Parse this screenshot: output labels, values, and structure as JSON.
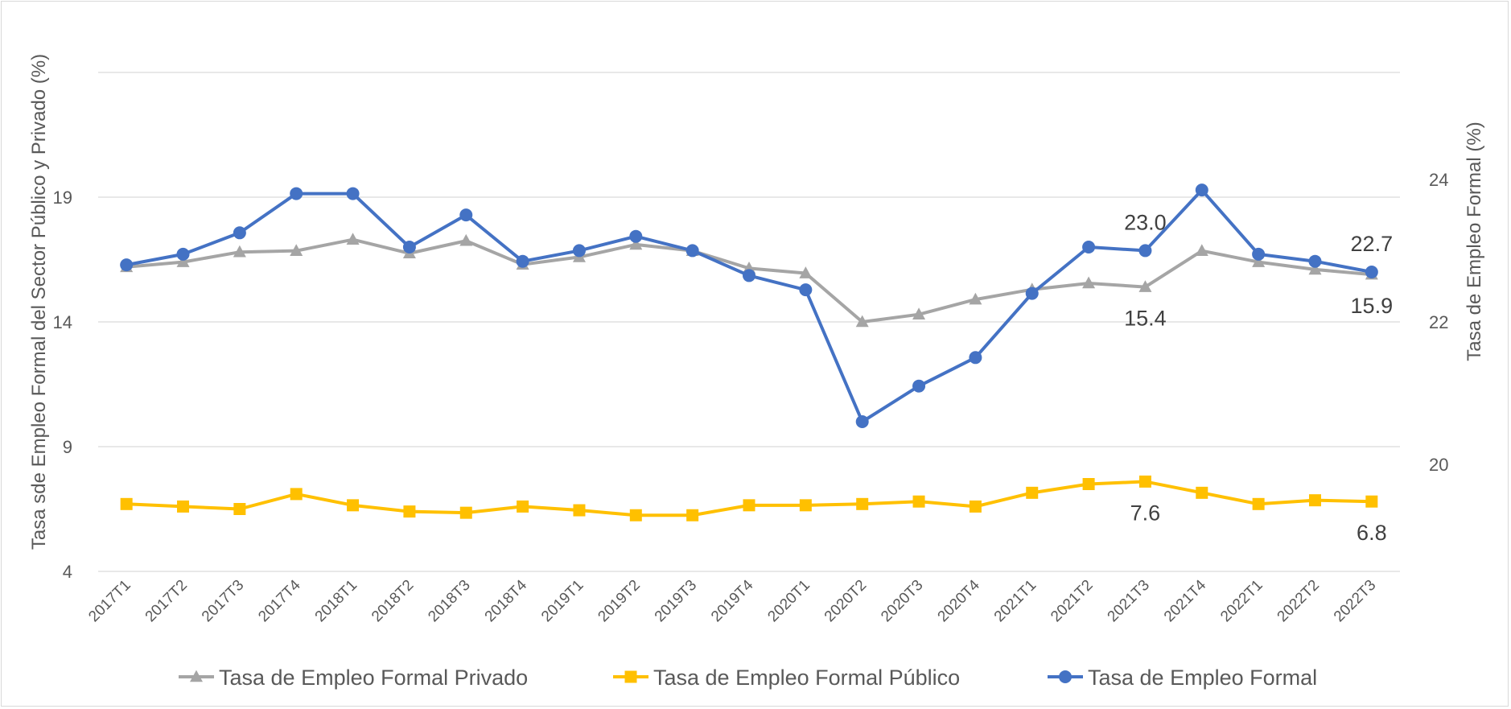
{
  "chart_data": {
    "type": "line",
    "title": "",
    "xlabel": "",
    "ylabel": "Tasa sde Empleo Formal del Sector Público y Privado (%)",
    "ylabel_right": "Tasa de Empleo Formal (%)",
    "ylim": [
      4,
      24
    ],
    "y_ticks": [
      4,
      9,
      14,
      19
    ],
    "ylim_right": [
      18.5,
      25.5
    ],
    "y_ticks_right": [
      20,
      22,
      24
    ],
    "grid": true,
    "legend_position": "bottom",
    "categories": [
      "2017T1",
      "2017T2",
      "2017T3",
      "2017T4",
      "2018T1",
      "2018T2",
      "2018T3",
      "2018T4",
      "2019T1",
      "2019T2",
      "2019T3",
      "2019T4",
      "2020T1",
      "2020T2",
      "2020T3",
      "2020T4",
      "2021T1",
      "2021T2",
      "2021T3",
      "2021T4",
      "2022T1",
      "2022T2",
      "2022T3"
    ],
    "series": [
      {
        "name": "Tasa de Empleo Formal Privado",
        "axis": "left",
        "color": "#a5a5a5",
        "marker": "triangle",
        "values": [
          16.2,
          16.4,
          16.8,
          16.85,
          17.3,
          16.75,
          17.25,
          16.3,
          16.6,
          17.1,
          16.85,
          16.15,
          15.95,
          14.0,
          14.3,
          14.9,
          15.3,
          15.55,
          15.4,
          16.85,
          16.4,
          16.1,
          15.9
        ],
        "labels": [
          {
            "index": 18,
            "text": "15.4"
          },
          {
            "index": 22,
            "text": "15.9"
          }
        ]
      },
      {
        "name": "Tasa de Empleo Formal Público",
        "axis": "left",
        "color": "#ffc000",
        "marker": "square",
        "values": [
          6.7,
          6.6,
          6.5,
          7.1,
          6.65,
          6.4,
          6.35,
          6.6,
          6.45,
          6.25,
          6.25,
          6.65,
          6.65,
          6.7,
          6.8,
          6.6,
          7.15,
          7.5,
          7.6,
          7.15,
          6.7,
          6.85,
          6.8
        ],
        "labels": [
          {
            "index": 18,
            "text": "7.6"
          },
          {
            "index": 22,
            "text": "6.8"
          }
        ]
      },
      {
        "name": "Tasa de Empleo Formal",
        "axis": "right",
        "color": "#4472c4",
        "marker": "circle",
        "values": [
          22.8,
          22.95,
          23.25,
          23.8,
          23.8,
          23.05,
          23.5,
          22.85,
          23.0,
          23.2,
          23.0,
          22.65,
          22.45,
          20.6,
          21.1,
          21.5,
          22.4,
          23.05,
          23.0,
          23.85,
          22.95,
          22.85,
          22.7
        ],
        "labels": [
          {
            "index": 18,
            "text": "23.0"
          },
          {
            "index": 22,
            "text": "22.7"
          }
        ]
      }
    ]
  }
}
